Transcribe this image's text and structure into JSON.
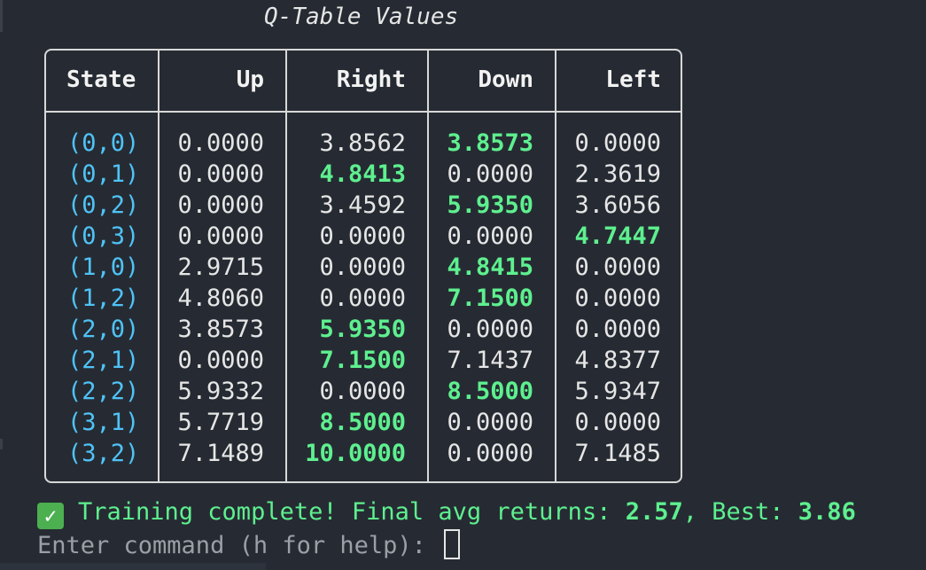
{
  "table_title": "Q-Table Values",
  "columns": [
    "State",
    "Up",
    "Right",
    "Down",
    "Left"
  ],
  "rows": [
    {
      "state": "(0,0)",
      "values": [
        "0.0000",
        "3.8562",
        "3.8573",
        "0.0000"
      ],
      "best": 2
    },
    {
      "state": "(0,1)",
      "values": [
        "0.0000",
        "4.8413",
        "0.0000",
        "2.3619"
      ],
      "best": 1
    },
    {
      "state": "(0,2)",
      "values": [
        "0.0000",
        "3.4592",
        "5.9350",
        "3.6056"
      ],
      "best": 2
    },
    {
      "state": "(0,3)",
      "values": [
        "0.0000",
        "0.0000",
        "0.0000",
        "4.7447"
      ],
      "best": 3
    },
    {
      "state": "(1,0)",
      "values": [
        "2.9715",
        "0.0000",
        "4.8415",
        "0.0000"
      ],
      "best": 2
    },
    {
      "state": "(1,2)",
      "values": [
        "4.8060",
        "0.0000",
        "7.1500",
        "0.0000"
      ],
      "best": 2
    },
    {
      "state": "(2,0)",
      "values": [
        "3.8573",
        "5.9350",
        "0.0000",
        "0.0000"
      ],
      "best": 1
    },
    {
      "state": "(2,1)",
      "values": [
        "0.0000",
        "7.1500",
        "7.1437",
        "4.8377"
      ],
      "best": 1
    },
    {
      "state": "(2,2)",
      "values": [
        "5.9332",
        "0.0000",
        "8.5000",
        "5.9347"
      ],
      "best": 2
    },
    {
      "state": "(3,1)",
      "values": [
        "5.7719",
        "8.5000",
        "0.0000",
        "0.0000"
      ],
      "best": 1
    },
    {
      "state": "(3,2)",
      "values": [
        "7.1489",
        "10.0000",
        "0.0000",
        "7.1485"
      ],
      "best": 1
    }
  ],
  "status": {
    "icon": "check-mark-icon",
    "prefix": "Training complete! Final avg returns: ",
    "avg_return": "2.57",
    "middle": ", Best: ",
    "best_return": "3.86"
  },
  "prompt": {
    "text": "Enter command (h for help): "
  },
  "colors": {
    "background": "#262b33",
    "state": "#4fc3f7",
    "best": "#5ef08f",
    "prompt": "#9aa0a6"
  }
}
